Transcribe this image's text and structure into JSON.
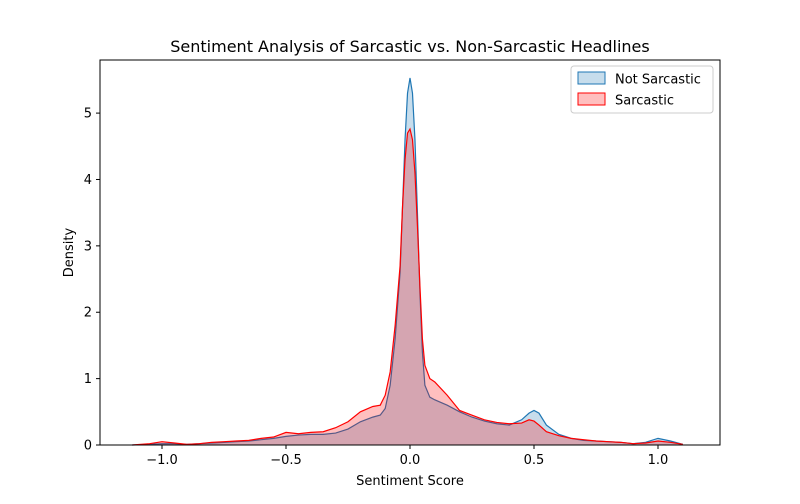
{
  "chart_data": {
    "type": "area",
    "title": "Sentiment Analysis of Sarcastic vs. Non-Sarcastic Headlines",
    "xlabel": "Sentiment Score",
    "ylabel": "Density",
    "xlim": [
      -1.25,
      1.25
    ],
    "ylim": [
      0,
      5.8
    ],
    "xticks": [
      -1.0,
      -0.5,
      0.0,
      0.5,
      1.0
    ],
    "xtick_labels": [
      "−1.0",
      "−0.5",
      "0.0",
      "0.5",
      "1.0"
    ],
    "yticks": [
      0,
      1,
      2,
      3,
      4,
      5
    ],
    "ytick_labels": [
      "0",
      "1",
      "2",
      "3",
      "4",
      "5"
    ],
    "grid": false,
    "legend_position": "top-right",
    "series": [
      {
        "name": "Not Sarcastic",
        "line_color": "#1f77b4",
        "fill_color": "#1f77b4",
        "x": [
          -1.12,
          -1.05,
          -1.0,
          -0.95,
          -0.9,
          -0.85,
          -0.8,
          -0.75,
          -0.7,
          -0.65,
          -0.6,
          -0.55,
          -0.5,
          -0.45,
          -0.4,
          -0.35,
          -0.3,
          -0.25,
          -0.2,
          -0.15,
          -0.12,
          -0.1,
          -0.08,
          -0.06,
          -0.04,
          -0.03,
          -0.02,
          -0.01,
          0.0,
          0.01,
          0.02,
          0.03,
          0.04,
          0.05,
          0.06,
          0.08,
          0.1,
          0.15,
          0.2,
          0.25,
          0.3,
          0.35,
          0.4,
          0.45,
          0.48,
          0.5,
          0.52,
          0.55,
          0.6,
          0.65,
          0.7,
          0.75,
          0.8,
          0.85,
          0.9,
          0.95,
          1.0,
          1.05,
          1.1
        ],
        "y": [
          0.0,
          0.01,
          0.02,
          0.02,
          0.01,
          0.02,
          0.03,
          0.04,
          0.05,
          0.06,
          0.08,
          0.1,
          0.13,
          0.15,
          0.16,
          0.16,
          0.18,
          0.24,
          0.35,
          0.42,
          0.45,
          0.55,
          0.9,
          1.6,
          2.6,
          3.6,
          4.6,
          5.3,
          5.53,
          5.3,
          4.6,
          3.5,
          2.3,
          1.4,
          0.9,
          0.72,
          0.68,
          0.6,
          0.5,
          0.42,
          0.36,
          0.32,
          0.3,
          0.38,
          0.48,
          0.52,
          0.48,
          0.3,
          0.16,
          0.1,
          0.07,
          0.06,
          0.05,
          0.04,
          0.02,
          0.04,
          0.1,
          0.06,
          0.01
        ]
      },
      {
        "name": "Sarcastic",
        "line_color": "#ff0000",
        "fill_color": "#ff0000",
        "x": [
          -1.12,
          -1.05,
          -1.0,
          -0.95,
          -0.9,
          -0.85,
          -0.8,
          -0.75,
          -0.7,
          -0.65,
          -0.6,
          -0.55,
          -0.5,
          -0.45,
          -0.4,
          -0.35,
          -0.3,
          -0.25,
          -0.2,
          -0.15,
          -0.12,
          -0.1,
          -0.08,
          -0.06,
          -0.04,
          -0.03,
          -0.02,
          -0.01,
          0.0,
          0.01,
          0.02,
          0.03,
          0.04,
          0.05,
          0.06,
          0.08,
          0.1,
          0.15,
          0.2,
          0.25,
          0.3,
          0.35,
          0.4,
          0.45,
          0.48,
          0.5,
          0.52,
          0.55,
          0.6,
          0.65,
          0.7,
          0.75,
          0.8,
          0.85,
          0.9,
          0.95,
          1.0,
          1.05,
          1.1
        ],
        "y": [
          0.0,
          0.02,
          0.05,
          0.03,
          0.01,
          0.02,
          0.04,
          0.05,
          0.06,
          0.07,
          0.1,
          0.12,
          0.19,
          0.17,
          0.19,
          0.2,
          0.26,
          0.35,
          0.5,
          0.58,
          0.6,
          0.75,
          1.1,
          1.8,
          2.7,
          3.6,
          4.3,
          4.7,
          4.76,
          4.6,
          4.1,
          3.3,
          2.4,
          1.6,
          1.2,
          1.0,
          0.95,
          0.75,
          0.52,
          0.45,
          0.38,
          0.34,
          0.32,
          0.33,
          0.38,
          0.36,
          0.3,
          0.2,
          0.14,
          0.1,
          0.08,
          0.06,
          0.05,
          0.04,
          0.02,
          0.03,
          0.06,
          0.04,
          0.01
        ]
      }
    ]
  }
}
